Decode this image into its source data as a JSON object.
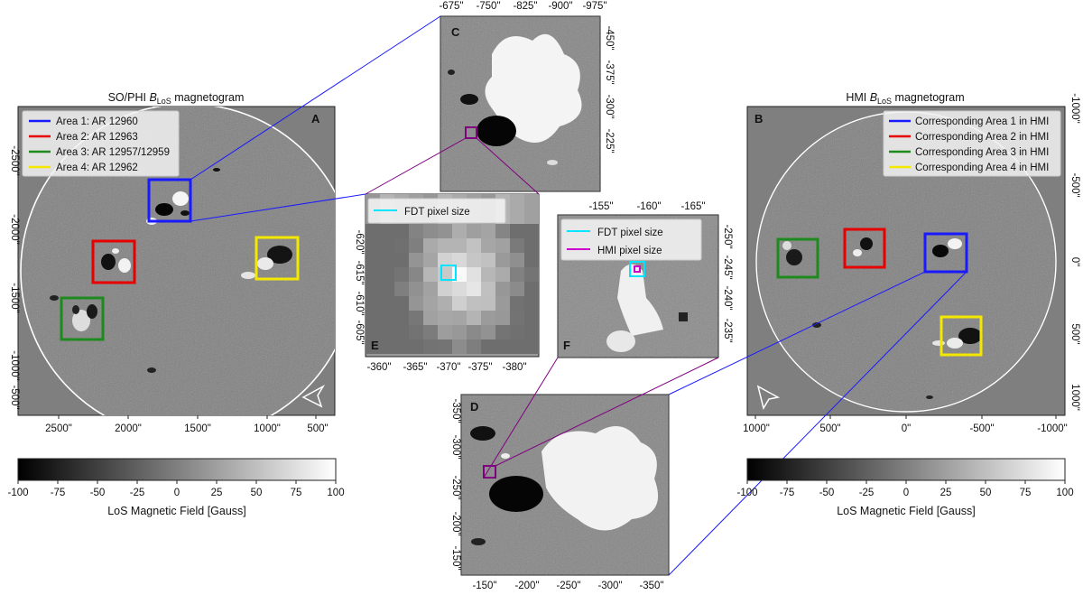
{
  "panels": {
    "A": {
      "letter": "A",
      "title_prefix": "SO/PHI ",
      "title_var": "B",
      "title_sub": "LoS",
      "title_suffix": " magnetogram",
      "xticks": [
        "2500\"",
        "2000\"",
        "1500\"",
        "1000\"",
        "500\""
      ],
      "yticks": [
        "-2500\"",
        "-2000\"",
        "-1500\"",
        "-1000\"",
        "-500\""
      ],
      "legend": [
        {
          "label": "Area 1: AR 12960",
          "color": "#1a1aff"
        },
        {
          "label": "Area 2: AR 12963",
          "color": "#e60000"
        },
        {
          "label": "Area 3: AR 12957/12959",
          "color": "#1e8a1e"
        },
        {
          "label": "Area 4: AR 12962",
          "color": "#f5e800"
        }
      ]
    },
    "B": {
      "letter": "B",
      "title_prefix": "HMI ",
      "title_var": "B",
      "title_sub": "LoS",
      "title_suffix": " magnetogram",
      "xticks": [
        "1000\"",
        "500\"",
        "0\"",
        "-500\"",
        "-1000\""
      ],
      "yticks": [
        "-1000\"",
        "-500\"",
        "0\"",
        "500\"",
        "1000\""
      ],
      "legend": [
        {
          "label": "Corresponding Area 1 in HMI",
          "color": "#1a1aff"
        },
        {
          "label": "Corresponding Area 2 in HMI",
          "color": "#e60000"
        },
        {
          "label": "Corresponding Area 3 in HMI",
          "color": "#1e8a1e"
        },
        {
          "label": "Corresponding Area 4 in HMI",
          "color": "#f5e800"
        }
      ]
    },
    "C": {
      "letter": "C",
      "xticks": [
        "-675\"",
        "-750\"",
        "-825\"",
        "-900\"",
        "-975\""
      ],
      "yticks": [
        "-450\"",
        "-375\"",
        "-300\"",
        "-225\""
      ]
    },
    "D": {
      "letter": "D",
      "xticks": [
        "-150\"",
        "-200\"",
        "-250\"",
        "-300\"",
        "-350\""
      ],
      "yticks": [
        "-350\"",
        "-300\"",
        "-250\"",
        "-200\"",
        "-150\""
      ]
    },
    "E": {
      "letter": "E",
      "xticks": [
        "-360\"",
        "-365\"",
        "-370\"",
        "-375\"",
        "-380\""
      ],
      "yticks": [
        "-620\"",
        "-615\"",
        "-610\"",
        "-605\""
      ],
      "legend": [
        {
          "label": "FDT pixel size",
          "color": "#00e5ff"
        }
      ]
    },
    "F": {
      "letter": "F",
      "xticks": [
        "-155\"",
        "-160\"",
        "-165\""
      ],
      "yticks": [
        "-250\"",
        "-245\"",
        "-240\"",
        "-235\""
      ],
      "legend": [
        {
          "label": "FDT pixel size",
          "color": "#00e5ff"
        },
        {
          "label": "HMI pixel size",
          "color": "#cc00cc"
        }
      ]
    }
  },
  "colorbars": [
    {
      "ticks": [
        "-100",
        "-75",
        "-50",
        "-25",
        "0",
        "25",
        "50",
        "75",
        "100"
      ],
      "label": "LoS Magnetic Field [Gauss]"
    },
    {
      "ticks": [
        "-100",
        "-75",
        "-50",
        "-25",
        "0",
        "25",
        "50",
        "75",
        "100"
      ],
      "label": "LoS Magnetic Field [Gauss]"
    }
  ],
  "colors": {
    "disk_gray": "#808080",
    "area1": "#1a1aff",
    "area2": "#e60000",
    "area3": "#1e8a1e",
    "area4": "#f5e800",
    "zoom_purple": "#800080",
    "fdt_cyan": "#00e5ff",
    "hmi_magenta": "#cc00cc"
  }
}
